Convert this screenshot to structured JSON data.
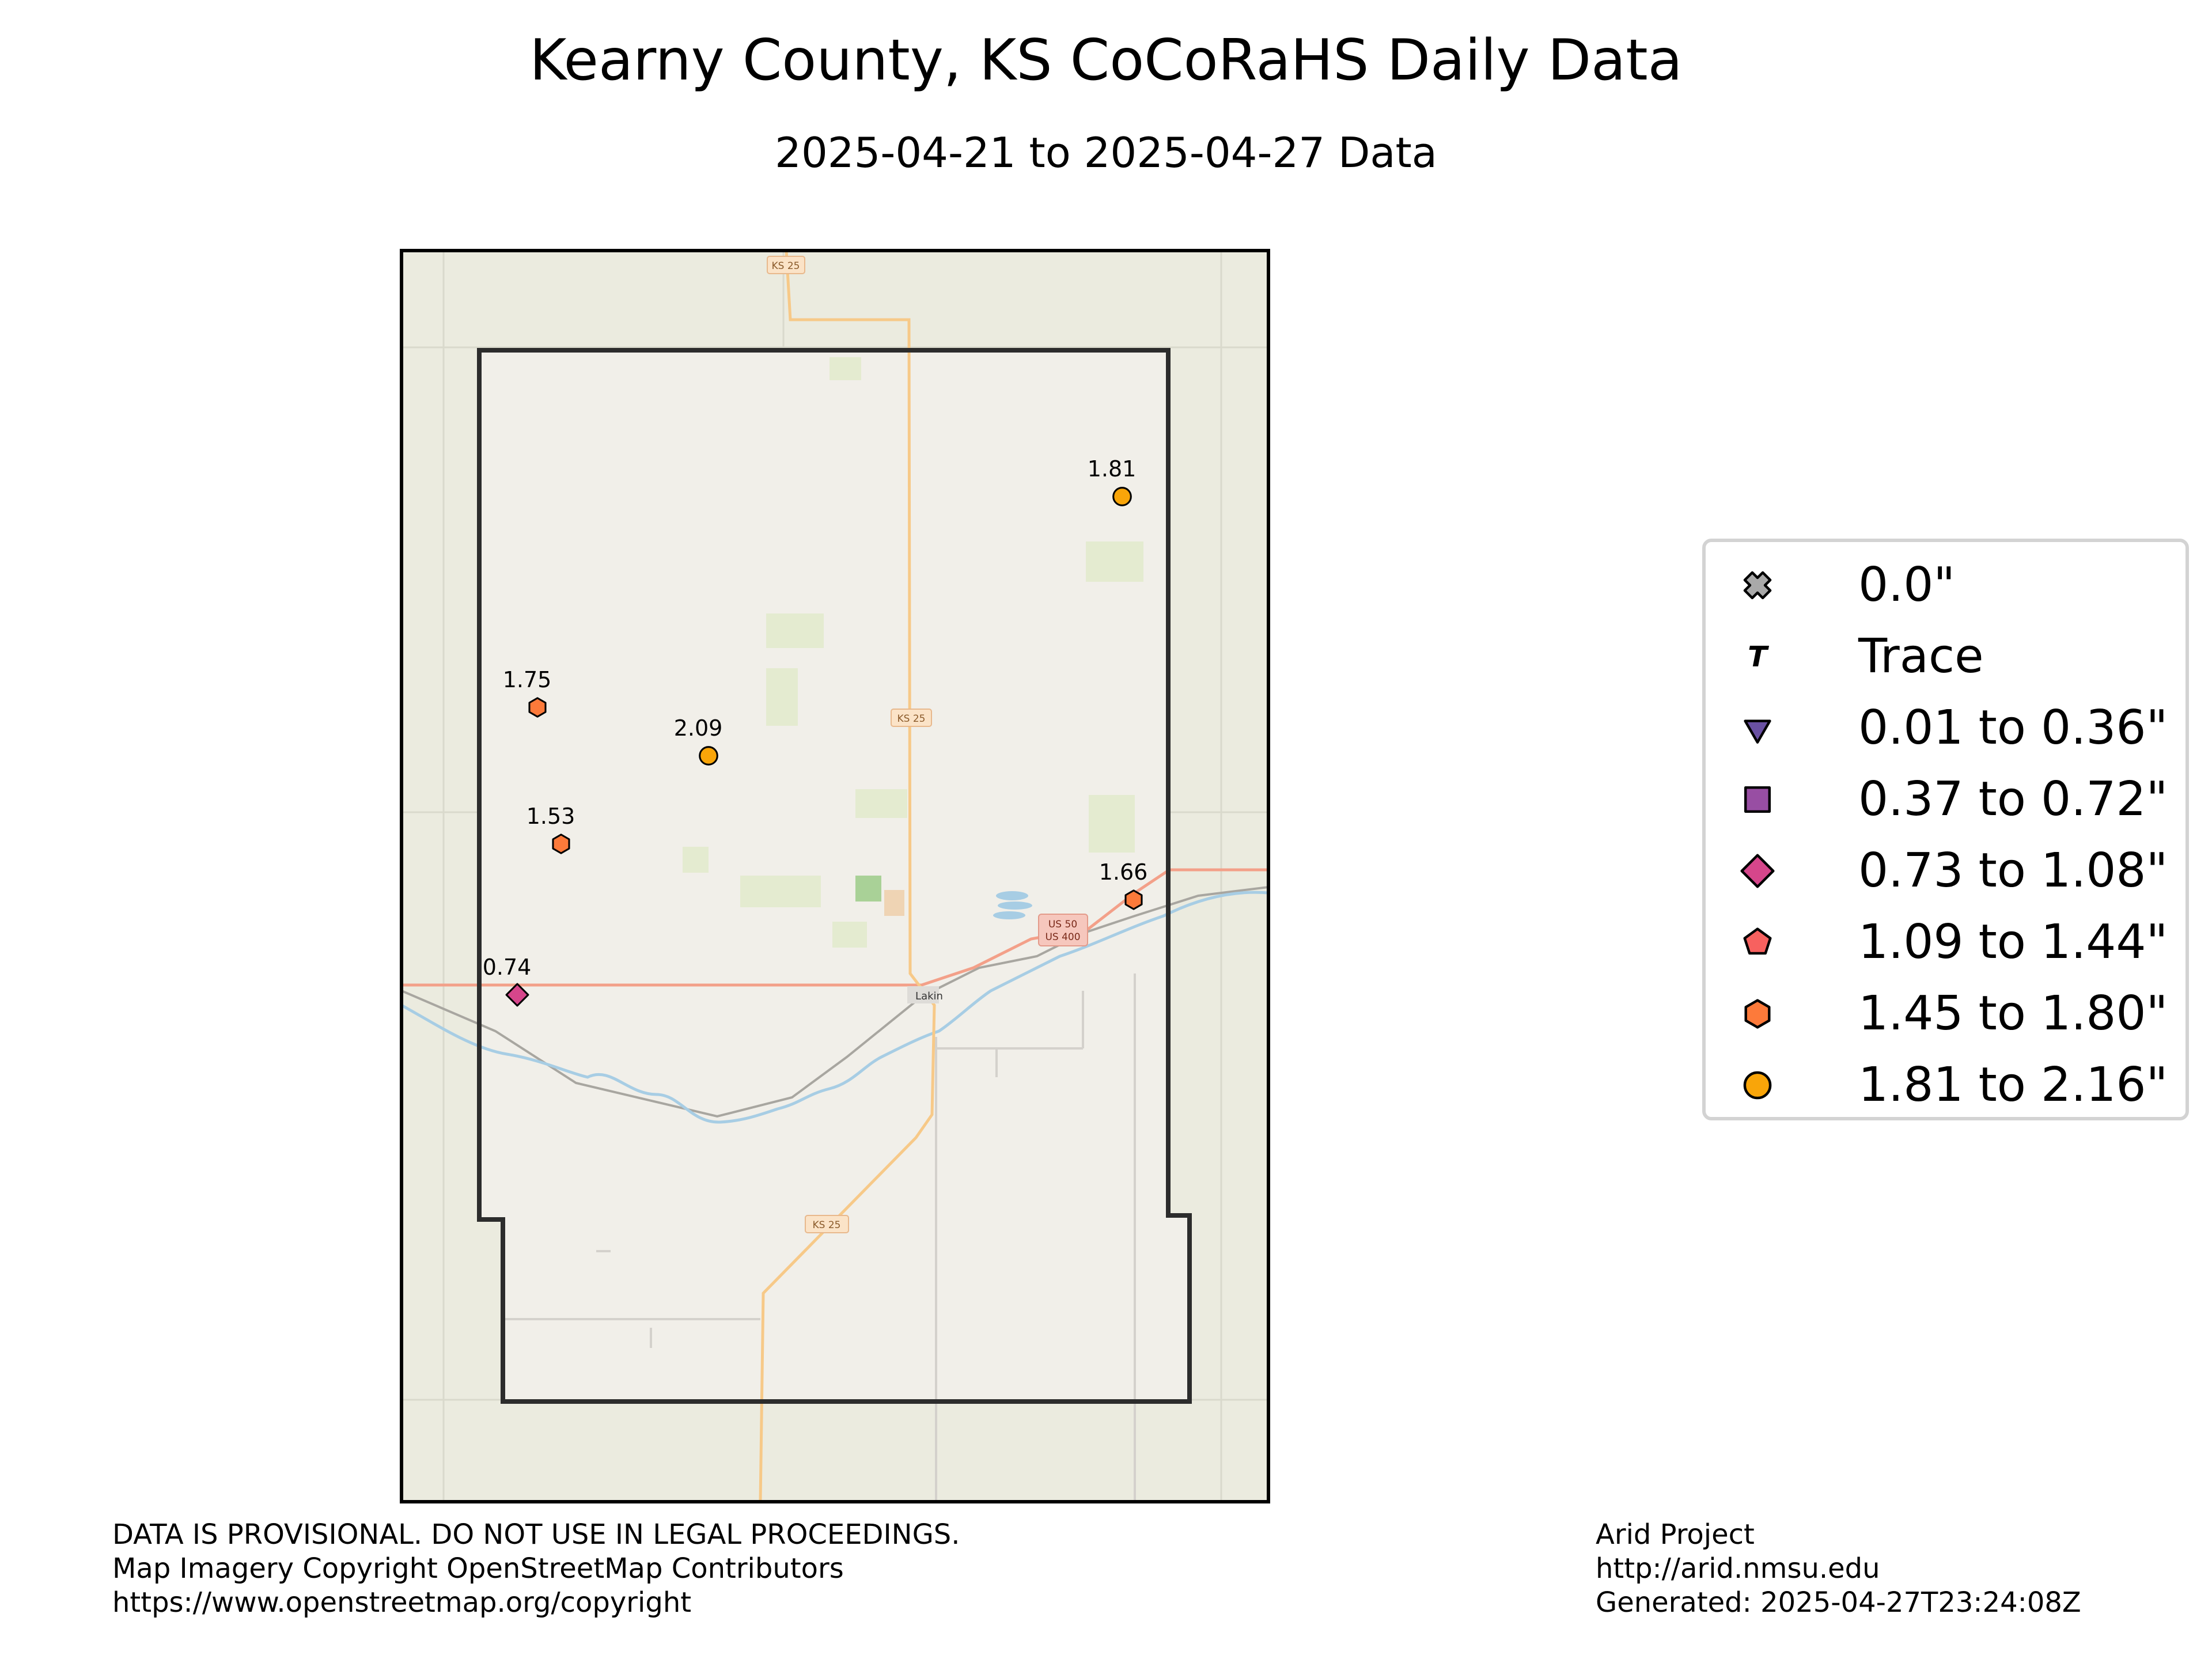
{
  "title": "Kearny County, KS CoCoRaHS Daily Data",
  "subtitle": "2025-04-21 to 2025-04-27 Data",
  "map": {
    "road_labels": [
      "KS 25",
      "KS 25",
      "KS 25",
      "US 50",
      "US 400"
    ],
    "place_labels": [
      "Lakin"
    ]
  },
  "stations": [
    {
      "value": "1.81",
      "category": 7
    },
    {
      "value": "1.75",
      "category": 6
    },
    {
      "value": "2.09",
      "category": 7
    },
    {
      "value": "1.53",
      "category": 6
    },
    {
      "value": "1.66",
      "category": 6
    },
    {
      "value": "0.74",
      "category": 4
    }
  ],
  "legend": [
    {
      "label": "0.0\"",
      "symbol": "x-icon",
      "color": "#a9a9a9"
    },
    {
      "label": "Trace",
      "symbol": "t-icon",
      "color": "#000000"
    },
    {
      "label": "0.01 to 0.36\"",
      "symbol": "triangle-down-icon",
      "color": "#6a51a3"
    },
    {
      "label": "0.37 to 0.72\"",
      "symbol": "square-icon",
      "color": "#984ea3"
    },
    {
      "label": "0.73 to 1.08\"",
      "symbol": "diamond-icon",
      "color": "#d6468b"
    },
    {
      "label": "1.09 to 1.44\"",
      "symbol": "pentagon-icon",
      "color": "#f7615f"
    },
    {
      "label": "1.45 to 1.80\"",
      "symbol": "hexagon-icon",
      "color": "#fd7a3a"
    },
    {
      "label": "1.81 to 2.16\"",
      "symbol": "circle-icon",
      "color": "#f9a509"
    }
  ],
  "footer_left": {
    "line1": "DATA IS PROVISIONAL. DO NOT USE IN LEGAL PROCEEDINGS.",
    "line2": "Map Imagery Copyright OpenStreetMap Contributors",
    "line3": "https://www.openstreetmap.org/copyright"
  },
  "footer_right": {
    "line1": "Arid Project",
    "line2": "http://arid.nmsu.edu",
    "line3": "Generated: 2025-04-27T23:24:08Z"
  }
}
